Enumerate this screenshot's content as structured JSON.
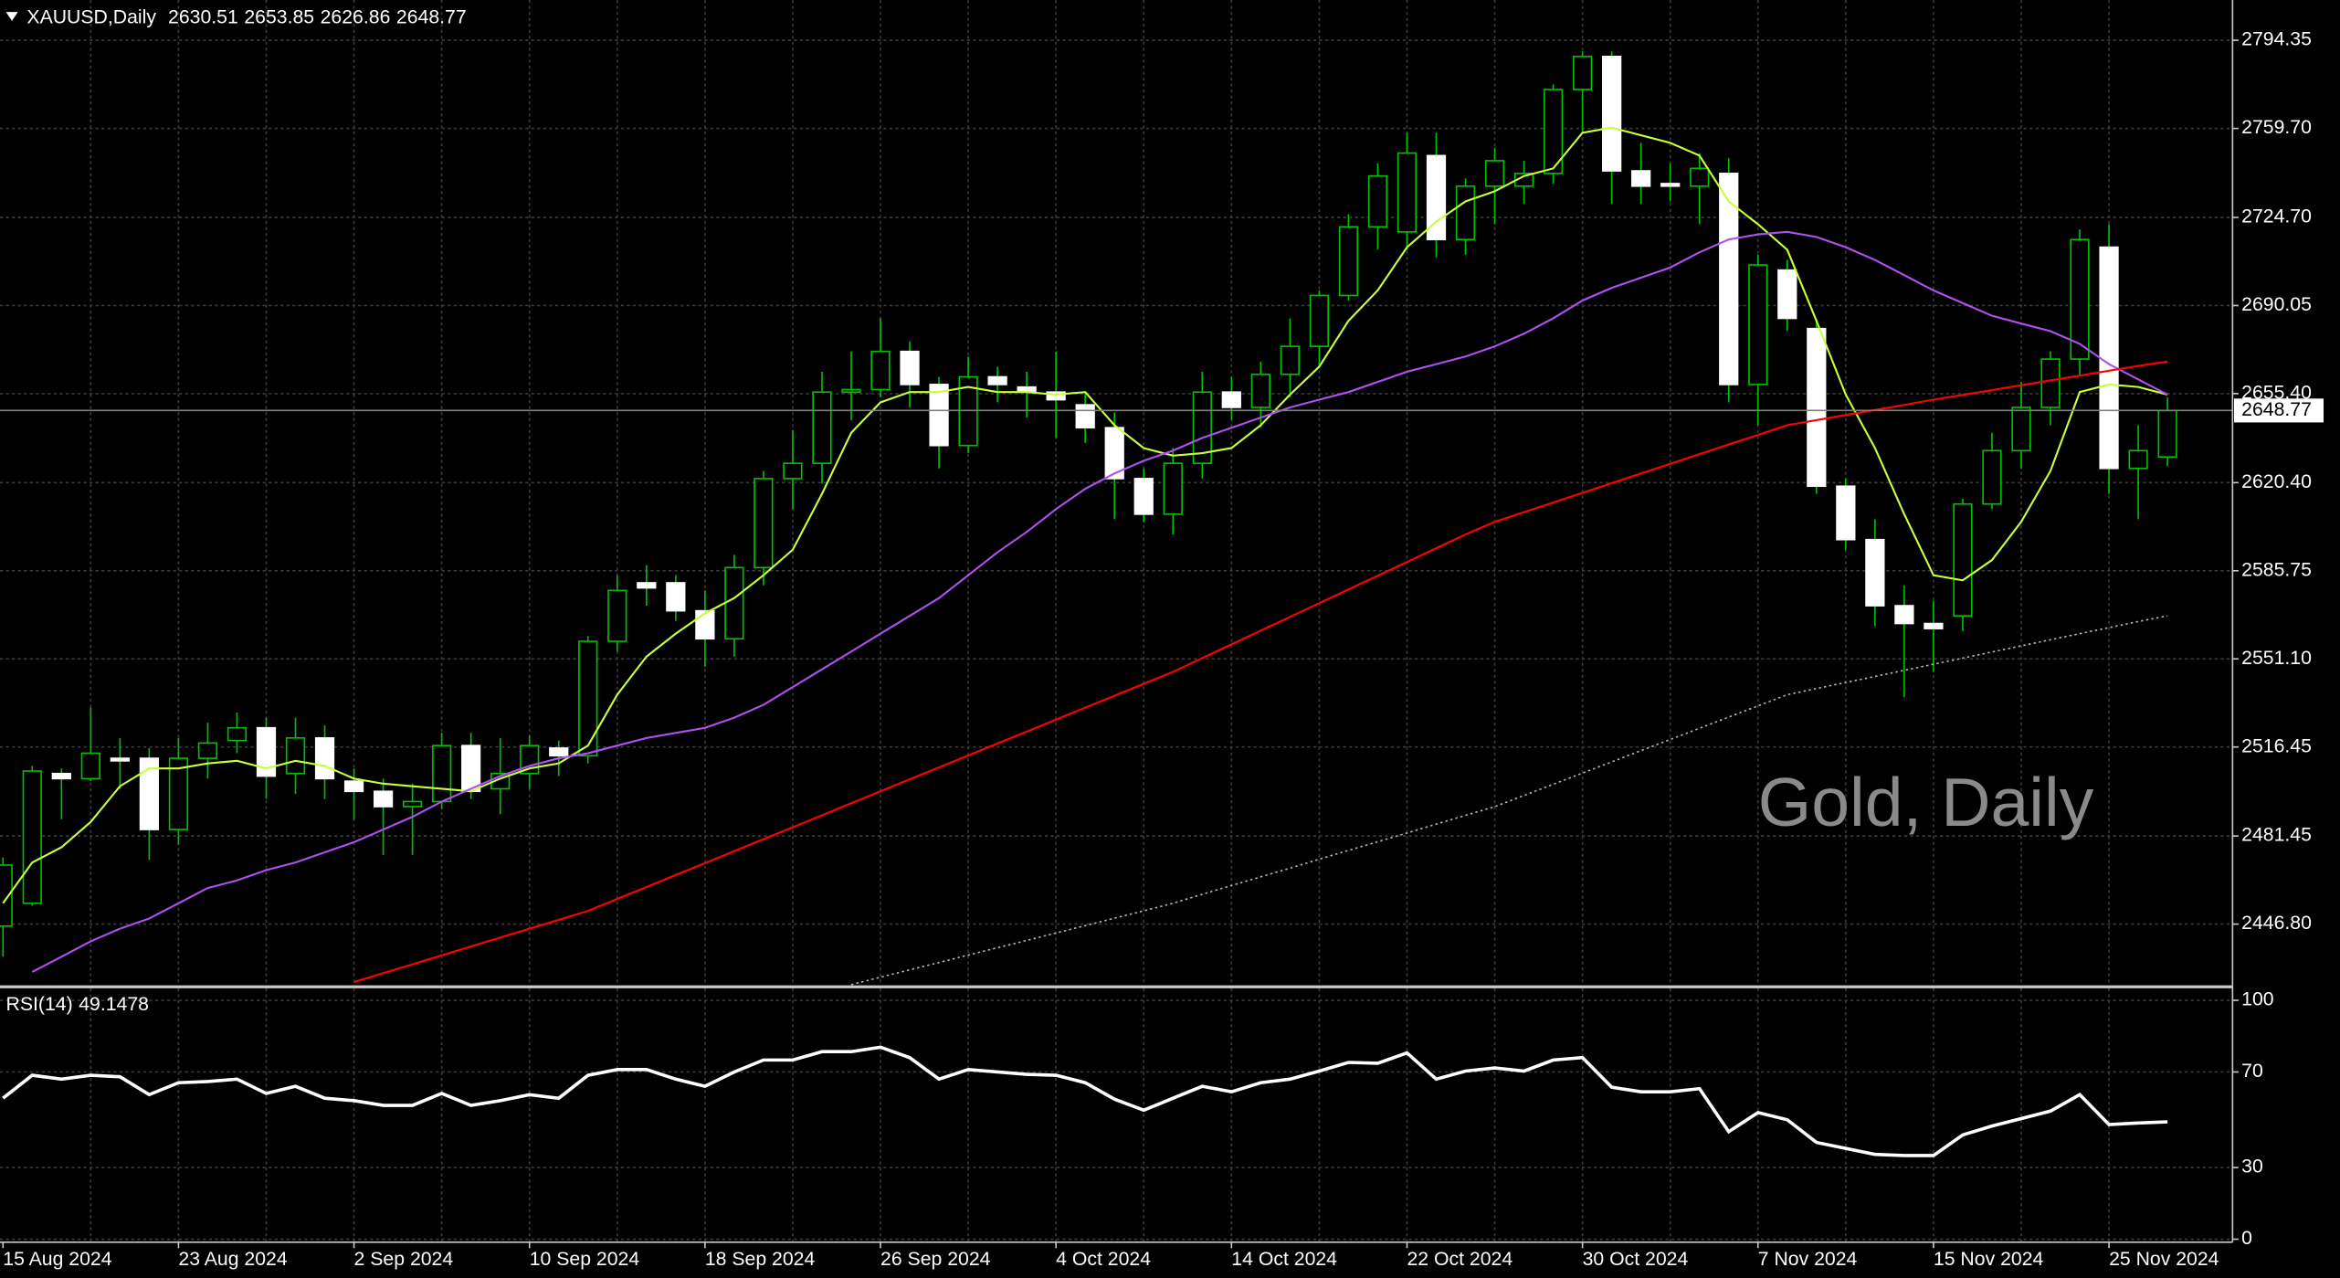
{
  "chart_data": [
    {
      "type": "candlestick",
      "title": "XAUUSD,Daily",
      "watermark": "Gold, Daily",
      "categories": [
        "15 Aug 2024",
        null,
        null,
        null,
        null,
        null,
        "23 Aug 2024",
        null,
        null,
        null,
        null,
        null,
        "2 Sep 2024",
        null,
        null,
        null,
        null,
        null,
        "10 Sep 2024",
        null,
        null,
        null,
        null,
        null,
        "18 Sep 2024",
        null,
        null,
        null,
        null,
        null,
        "26 Sep 2024",
        null,
        null,
        null,
        null,
        null,
        "4 Oct 2024",
        null,
        null,
        null,
        null,
        null,
        "14 Oct 2024",
        null,
        null,
        null,
        null,
        null,
        "22 Oct 2024",
        null,
        null,
        null,
        null,
        null,
        "30 Oct 2024",
        null,
        null,
        null,
        null,
        null,
        "7 Nov 2024",
        null,
        null,
        null,
        null,
        null,
        "15 Nov 2024",
        null,
        null,
        null,
        null,
        null,
        "25 Nov 2024",
        null,
        null
      ],
      "open": [
        2446,
        2455,
        2506,
        2504,
        2512,
        2512,
        2484,
        2512,
        2519,
        2524,
        2506,
        2520,
        2503,
        2499,
        2493,
        2495,
        2517,
        2500,
        2506,
        2516,
        2513,
        2558,
        2581,
        2581,
        2570,
        2559,
        2587,
        2622,
        2628,
        2656,
        2657,
        2672,
        2659,
        2635,
        2662,
        2658,
        2656,
        2651,
        2642,
        2622,
        2608,
        2628,
        2656,
        2650,
        2663,
        2674,
        2694,
        2721,
        2719,
        2749,
        2716,
        2737,
        2737,
        2742,
        2775,
        2788,
        2743,
        2738,
        2737,
        2742,
        2659,
        2704,
        2681,
        2619,
        2598,
        2572,
        2565,
        2568,
        2612,
        2633,
        2650,
        2669,
        2713,
        2626,
        2630.51
      ],
      "high": [
        2473,
        2509,
        2508,
        2532,
        2520,
        2516,
        2520,
        2526,
        2530,
        2528,
        2528,
        2525,
        2508,
        2504,
        2502,
        2522,
        2522,
        2520,
        2521,
        2519,
        2560,
        2584,
        2588,
        2584,
        2578,
        2592,
        2625,
        2641,
        2664,
        2672,
        2685,
        2676,
        2662,
        2670,
        2666,
        2664,
        2672,
        2656,
        2648,
        2626,
        2634,
        2664,
        2662,
        2668,
        2685,
        2696,
        2726,
        2746,
        2758,
        2758,
        2740,
        2752,
        2747,
        2777,
        2790,
        2790,
        2754,
        2746,
        2750,
        2748,
        2710,
        2708,
        2684,
        2622,
        2606,
        2580,
        2574,
        2614,
        2640,
        2660,
        2672,
        2720,
        2722,
        2643,
        2653.85
      ],
      "low": [
        2434,
        2454,
        2488,
        2503,
        2500,
        2472,
        2478,
        2504,
        2514,
        2496,
        2498,
        2496,
        2488,
        2474,
        2474,
        2492,
        2496,
        2490,
        2500,
        2505,
        2510,
        2554,
        2572,
        2566,
        2548,
        2552,
        2580,
        2610,
        2620,
        2645,
        2654,
        2650,
        2626,
        2632,
        2652,
        2646,
        2638,
        2636,
        2606,
        2605,
        2600,
        2622,
        2645,
        2642,
        2654,
        2666,
        2692,
        2712,
        2712,
        2709,
        2710,
        2722,
        2730,
        2738,
        2758,
        2730,
        2730,
        2731,
        2722,
        2652,
        2643,
        2680,
        2616,
        2594,
        2564,
        2536,
        2546,
        2562,
        2610,
        2626,
        2643,
        2662,
        2616,
        2606,
        2626.86
      ],
      "close": [
        2470,
        2507,
        2504,
        2514,
        2511,
        2484,
        2512,
        2518,
        2524,
        2505,
        2520,
        2504,
        2499,
        2493,
        2495,
        2517,
        2499,
        2506,
        2517,
        2513,
        2558,
        2578,
        2579,
        2570,
        2559,
        2587,
        2622,
        2628,
        2656,
        2657,
        2672,
        2659,
        2635,
        2662,
        2659,
        2656,
        2653,
        2642,
        2622,
        2608,
        2628,
        2656,
        2650,
        2663,
        2674,
        2694,
        2721,
        2741,
        2750,
        2716,
        2737,
        2747,
        2742,
        2775,
        2788,
        2743,
        2737,
        2737,
        2744,
        2659,
        2706,
        2685,
        2619,
        2598,
        2572,
        2565,
        2563,
        2612,
        2633,
        2650,
        2669,
        2716,
        2626,
        2633,
        2648.77
      ],
      "up_color": "#00c000",
      "down_color": "#ffffff",
      "wick_color": "#00c000",
      "series": [
        {
          "color": "#c8ff3c",
          "line_style": "solid",
          "values": [
            2455,
            2471,
            2477,
            2487,
            2501,
            2508,
            2508,
            2510,
            2511,
            2508,
            2511,
            2509,
            2504,
            2502,
            2501,
            2500,
            2499,
            2504,
            2508,
            2510,
            2517,
            2537,
            2552,
            2561,
            2569,
            2575,
            2584,
            2594,
            2616,
            2640,
            2652,
            2656,
            2656,
            2658,
            2656,
            2656,
            2655,
            2656,
            2643,
            2634,
            2631,
            2632,
            2634,
            2643,
            2655,
            2666,
            2684,
            2696,
            2713,
            2723,
            2731,
            2735,
            2741,
            2744,
            2758,
            2760,
            2757,
            2754,
            2749,
            2731,
            2722,
            2712,
            2684,
            2655,
            2634,
            2608,
            2584,
            2582,
            2590,
            2605,
            2625,
            2656,
            2659,
            2658,
            2655
          ]
        },
        {
          "color": "#b050f0",
          "line_style": "solid",
          "values": [
            null,
            2428,
            2434,
            2440,
            2445,
            2449,
            2455,
            2461,
            2464,
            2468,
            2471,
            2475,
            2479,
            2484,
            2489,
            2495,
            2500,
            2505,
            2509,
            2512,
            2514,
            2517,
            2520,
            2522,
            2524,
            2528,
            2533,
            2540,
            2547,
            2554,
            2561,
            2568,
            2575,
            2584,
            2593,
            2601,
            2610,
            2618,
            2624,
            2629,
            2633,
            2638,
            2642,
            2646,
            2650,
            2653,
            2656,
            2660,
            2664,
            2667,
            2670,
            2674,
            2679,
            2685,
            2692,
            2697,
            2701,
            2705,
            2711,
            2716,
            2718,
            2719,
            2717,
            2713,
            2708,
            2702,
            2696,
            2691,
            2686,
            2683,
            2680,
            2675,
            2667,
            2661,
            2655
          ]
        },
        {
          "color": "#ff0000",
          "line_style": "solid",
          "values": [
            null,
            null,
            null,
            null,
            null,
            null,
            null,
            null,
            null,
            null,
            null,
            null,
            2424,
            2427.5,
            2431,
            2434.5,
            2438,
            2441.5,
            2445,
            2448.5,
            2452,
            2456.7,
            2461.4,
            2466.1,
            2470.8,
            2475.5,
            2480.2,
            2484.9,
            2489.6,
            2494.3,
            2499,
            2503.7,
            2508.4,
            2513.1,
            2517.8,
            2522.5,
            2527.2,
            2531.9,
            2536.6,
            2541.3,
            2546,
            2551.4,
            2556.8,
            2562.2,
            2567.6,
            2573,
            2578.4,
            2583.8,
            2589.2,
            2594.6,
            2600,
            2605,
            2608.8,
            2612.6,
            2616.4,
            2620.2,
            2624,
            2627.8,
            2631.6,
            2635.4,
            2639.2,
            2643,
            2645,
            2647,
            2649,
            2651,
            2653,
            2654.9,
            2656.8,
            2658.7,
            2660.6,
            2662.5,
            2664.4,
            2666.3,
            2668
          ]
        },
        {
          "color": "#b4b4b4",
          "line_style": "dotted",
          "values": [
            null,
            null,
            null,
            null,
            null,
            null,
            null,
            null,
            null,
            null,
            null,
            null,
            null,
            null,
            null,
            null,
            null,
            null,
            null,
            null,
            null,
            null,
            null,
            null,
            null,
            null,
            null,
            null,
            null,
            2423,
            2425.9,
            2428.8,
            2431.7,
            2434.6,
            2437.5,
            2440.4,
            2443.3,
            2446.2,
            2449.1,
            2452,
            2455,
            2458.5,
            2462,
            2465.4,
            2468.8,
            2472.3,
            2475.8,
            2479.2,
            2482.6,
            2486.1,
            2489.6,
            2493,
            2497.4,
            2501.8,
            2506.2,
            2510.6,
            2515,
            2519.4,
            2523.8,
            2528.2,
            2532.6,
            2537,
            2539.4,
            2541.8,
            2544.2,
            2546.6,
            2549,
            2551.4,
            2553.8,
            2556.2,
            2558.6,
            2561,
            2563.4,
            2565.8,
            2568
          ]
        }
      ],
      "ylim": [
        2422.7,
        2810.2
      ],
      "yticks": [
        2794.35,
        {
          "value": 2759.7,
          "label": "2759.70"
        },
        {
          "value": 2724.7,
          "label": "2724.70"
        },
        2690.05,
        {
          "value": 2655.4,
          "label": "2655.40"
        },
        {
          "value": 2620.4,
          "label": "2620.40"
        },
        2585.75,
        {
          "value": 2551.1,
          "label": "2551.10"
        },
        2516.45,
        2481.45,
        {
          "value": 2446.8,
          "label": "2446.80"
        }
      ],
      "grid": true
    },
    {
      "type": "line",
      "title": "RSI(14)",
      "color": "#ffffff",
      "values": [
        59,
        68.6,
        67,
        68.6,
        68,
        60.5,
        65.5,
        66,
        67,
        61,
        64,
        59,
        58,
        56,
        56,
        61,
        56,
        58,
        60.5,
        59,
        68.6,
        71,
        71,
        67,
        64,
        70,
        75,
        75,
        78.5,
        78.5,
        80.4,
        76,
        67,
        71,
        70,
        69,
        68.6,
        65.5,
        58.6,
        54,
        59,
        64,
        61.7,
        65.5,
        67,
        70.4,
        74,
        73.6,
        78,
        67,
        70.4,
        71.7,
        70.4,
        75,
        76,
        63.6,
        61.7,
        61.7,
        63,
        45,
        53,
        50,
        40.5,
        38,
        35.5,
        35,
        35,
        43.6,
        47.4,
        50.5,
        53.6,
        60.5,
        48,
        48.6,
        49.1478
      ],
      "ylim": [
        -1.25,
        105
      ],
      "yticks": [
        0,
        30,
        70,
        100
      ],
      "grid": true
    }
  ]
}
